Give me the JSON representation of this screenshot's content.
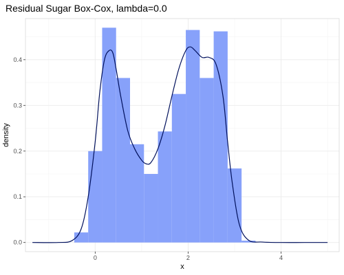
{
  "chart_data": {
    "type": "bar",
    "title": "Residual Sugar Box-Cox, lambda=0.0",
    "xlabel": "x",
    "ylabel": "density",
    "xlim": [
      -1.5,
      5.25
    ],
    "ylim": [
      -0.02,
      0.49
    ],
    "x_ticks": [
      0,
      2,
      4
    ],
    "x_tick_labels": [
      "0",
      "2",
      "4"
    ],
    "y_ticks": [
      0.0,
      0.1,
      0.2,
      0.3,
      0.4
    ],
    "y_tick_labels": [
      "0.0",
      "0.1",
      "0.2",
      "0.3",
      "0.4"
    ],
    "grid": true,
    "legend": "none",
    "colors": {
      "histogram_fill": "#87a1fa",
      "density_line": "#00105c"
    },
    "histogram": {
      "bin_width": 0.3,
      "bins": [
        {
          "x_start": -0.45,
          "x_end": -0.15,
          "density": 0.022
        },
        {
          "x_start": -0.15,
          "x_end": 0.15,
          "density": 0.2
        },
        {
          "x_start": 0.15,
          "x_end": 0.45,
          "density": 0.47
        },
        {
          "x_start": 0.45,
          "x_end": 0.75,
          "density": 0.36
        },
        {
          "x_start": 0.75,
          "x_end": 1.05,
          "density": 0.215
        },
        {
          "x_start": 1.05,
          "x_end": 1.35,
          "density": 0.15
        },
        {
          "x_start": 1.35,
          "x_end": 1.65,
          "density": 0.243
        },
        {
          "x_start": 1.65,
          "x_end": 1.95,
          "density": 0.325
        },
        {
          "x_start": 1.95,
          "x_end": 2.25,
          "density": 0.465
        },
        {
          "x_start": 2.25,
          "x_end": 2.55,
          "density": 0.36
        },
        {
          "x_start": 2.55,
          "x_end": 2.85,
          "density": 0.462
        },
        {
          "x_start": 2.85,
          "x_end": 3.15,
          "density": 0.162
        },
        {
          "x_start": 3.15,
          "x_end": 3.45,
          "density": 0.004
        }
      ]
    },
    "density_curve": {
      "x": [
        -1.35,
        -0.8,
        -0.5,
        -0.3,
        -0.15,
        0.0,
        0.1,
        0.2,
        0.3,
        0.38,
        0.45,
        0.55,
        0.7,
        0.85,
        1.0,
        1.1,
        1.2,
        1.35,
        1.5,
        1.65,
        1.8,
        1.95,
        2.05,
        2.15,
        2.3,
        2.45,
        2.6,
        2.75,
        2.85,
        2.95,
        3.1,
        3.3,
        3.6,
        4.0,
        4.5,
        5.0
      ],
      "y": [
        0.0,
        0.0,
        0.004,
        0.03,
        0.1,
        0.22,
        0.33,
        0.4,
        0.42,
        0.415,
        0.38,
        0.32,
        0.245,
        0.205,
        0.18,
        0.172,
        0.175,
        0.205,
        0.255,
        0.32,
        0.38,
        0.42,
        0.428,
        0.42,
        0.405,
        0.405,
        0.39,
        0.32,
        0.22,
        0.13,
        0.04,
        0.005,
        0.001,
        0.0,
        0.0,
        0.0
      ]
    }
  }
}
